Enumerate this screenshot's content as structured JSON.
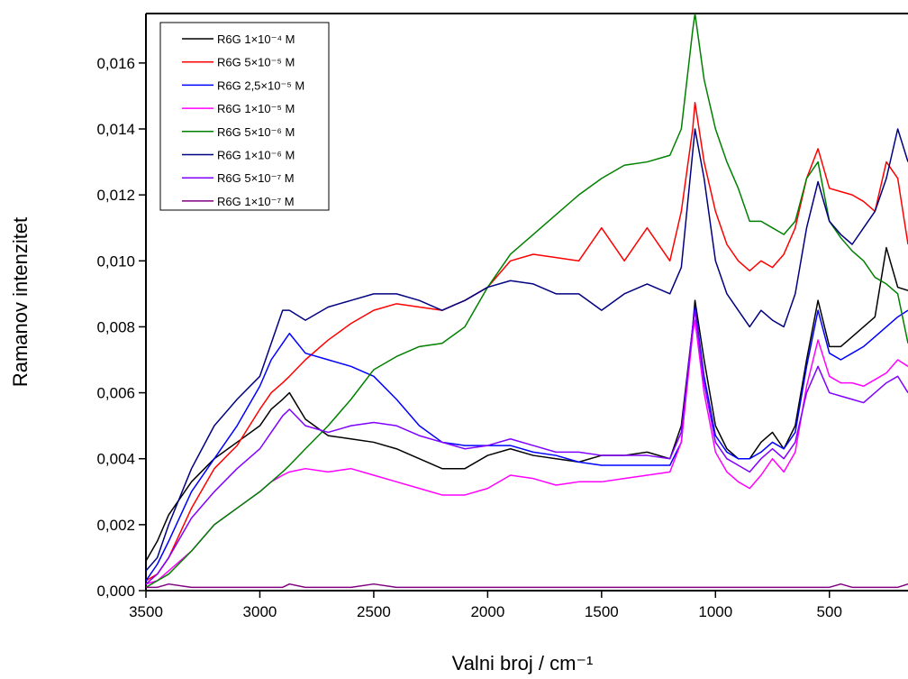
{
  "chart_data": {
    "type": "line",
    "x_label": "Valni broj / cm⁻¹",
    "y_label": "Ramanov intenzitet",
    "x": [
      3500,
      3450,
      3400,
      3300,
      3200,
      3100,
      3000,
      2950,
      2900,
      2870,
      2800,
      2700,
      2600,
      2500,
      2400,
      2300,
      2200,
      2100,
      2000,
      1900,
      1800,
      1700,
      1600,
      1500,
      1400,
      1300,
      1200,
      1150,
      1100,
      1090,
      1050,
      1000,
      950,
      900,
      850,
      800,
      750,
      700,
      650,
      600,
      550,
      500,
      450,
      400,
      350,
      300,
      250,
      200,
      155
    ],
    "xlim": [
      3500,
      155
    ],
    "xticks": [
      3500,
      3000,
      2500,
      2000,
      1500,
      1000,
      500
    ],
    "ylim": [
      0,
      0.0175
    ],
    "yticks": [
      {
        "value": 0,
        "label": "0,000"
      },
      {
        "value": 0.002,
        "label": "0,002"
      },
      {
        "value": 0.004,
        "label": "0,004"
      },
      {
        "value": 0.006,
        "label": "0,006"
      },
      {
        "value": 0.008,
        "label": "0,008"
      },
      {
        "value": 0.01,
        "label": "0,010"
      },
      {
        "value": 0.012,
        "label": "0,012"
      },
      {
        "value": 0.014,
        "label": "0,014"
      },
      {
        "value": 0.016,
        "label": "0,016"
      }
    ],
    "legend": "top-left",
    "series": [
      {
        "name": "R6G 1×10⁻⁴ M",
        "color": "#000000",
        "values": [
          0.0009,
          0.0015,
          0.0023,
          0.0033,
          0.004,
          0.0045,
          0.005,
          0.0055,
          0.0058,
          0.006,
          0.0052,
          0.0047,
          0.0046,
          0.0045,
          0.0043,
          0.004,
          0.0037,
          0.0037,
          0.0041,
          0.0043,
          0.0041,
          0.004,
          0.0039,
          0.0041,
          0.0041,
          0.0042,
          0.004,
          0.005,
          0.008,
          0.0088,
          0.007,
          0.005,
          0.0043,
          0.004,
          0.004,
          0.0045,
          0.0048,
          0.0043,
          0.005,
          0.007,
          0.0088,
          0.0074,
          0.0074,
          0.0077,
          0.008,
          0.0083,
          0.0104,
          0.0092,
          0.0091
        ]
      },
      {
        "name": "R6G 5×10⁻⁵ M",
        "color": "#ff0000",
        "values": [
          0.0003,
          0.0005,
          0.001,
          0.0025,
          0.0037,
          0.0044,
          0.0055,
          0.006,
          0.0063,
          0.0065,
          0.007,
          0.0076,
          0.0081,
          0.0085,
          0.0087,
          0.0086,
          0.0085,
          0.0088,
          0.0092,
          0.01,
          0.0102,
          0.0101,
          0.01,
          0.011,
          0.01,
          0.011,
          0.01,
          0.0115,
          0.014,
          0.0148,
          0.013,
          0.0115,
          0.0105,
          0.01,
          0.0097,
          0.01,
          0.0098,
          0.0102,
          0.011,
          0.0125,
          0.0134,
          0.0122,
          0.0121,
          0.012,
          0.0118,
          0.0115,
          0.013,
          0.0125,
          0.0105
        ]
      },
      {
        "name": "R6G 2,5×10⁻⁵ M",
        "color": "#0000ff",
        "values": [
          0.0003,
          0.0008,
          0.0015,
          0.003,
          0.004,
          0.005,
          0.0062,
          0.007,
          0.0075,
          0.0078,
          0.0072,
          0.007,
          0.0068,
          0.0065,
          0.0058,
          0.005,
          0.0045,
          0.0044,
          0.0044,
          0.0044,
          0.0042,
          0.0041,
          0.0039,
          0.0038,
          0.0038,
          0.0038,
          0.0038,
          0.0045,
          0.008,
          0.0086,
          0.0065,
          0.0047,
          0.0042,
          0.004,
          0.004,
          0.0042,
          0.0045,
          0.0043,
          0.0048,
          0.0068,
          0.0085,
          0.0072,
          0.007,
          0.0072,
          0.0074,
          0.0077,
          0.008,
          0.0083,
          0.0085
        ]
      },
      {
        "name": "R6G 1×10⁻⁵ M",
        "color": "#ff00ff",
        "values": [
          0.0002,
          0.0003,
          0.0006,
          0.0012,
          0.002,
          0.0025,
          0.003,
          0.0033,
          0.0035,
          0.0036,
          0.0037,
          0.0036,
          0.0037,
          0.0035,
          0.0033,
          0.0031,
          0.0029,
          0.0029,
          0.0031,
          0.0035,
          0.0034,
          0.0032,
          0.0033,
          0.0033,
          0.0034,
          0.0035,
          0.0036,
          0.0045,
          0.0078,
          0.0082,
          0.006,
          0.0042,
          0.0036,
          0.0033,
          0.0031,
          0.0035,
          0.004,
          0.0036,
          0.0042,
          0.0062,
          0.0076,
          0.0065,
          0.0063,
          0.0063,
          0.0062,
          0.0064,
          0.0066,
          0.007,
          0.0068
        ]
      },
      {
        "name": "R6G 5×10⁻⁶ M",
        "color": "#008000",
        "values": [
          0.0001,
          0.0003,
          0.0005,
          0.0012,
          0.002,
          0.0025,
          0.003,
          0.0033,
          0.0036,
          0.0038,
          0.0043,
          0.005,
          0.0058,
          0.0067,
          0.0071,
          0.0074,
          0.0075,
          0.008,
          0.0092,
          0.0102,
          0.0108,
          0.0114,
          0.012,
          0.0125,
          0.0129,
          0.013,
          0.0132,
          0.014,
          0.017,
          0.0175,
          0.0155,
          0.014,
          0.013,
          0.0122,
          0.0112,
          0.0112,
          0.011,
          0.0108,
          0.0112,
          0.0125,
          0.013,
          0.0112,
          0.0107,
          0.0103,
          0.01,
          0.0095,
          0.0093,
          0.009,
          0.0075
        ]
      },
      {
        "name": "R6G 1×10⁻⁶ M",
        "color": "#000080",
        "values": [
          0.0006,
          0.001,
          0.002,
          0.0037,
          0.005,
          0.0058,
          0.0065,
          0.0075,
          0.0085,
          0.0085,
          0.0082,
          0.0086,
          0.0088,
          0.009,
          0.009,
          0.0088,
          0.0085,
          0.0088,
          0.0092,
          0.0094,
          0.0093,
          0.009,
          0.009,
          0.0085,
          0.009,
          0.0093,
          0.009,
          0.0098,
          0.0133,
          0.014,
          0.0125,
          0.01,
          0.009,
          0.0085,
          0.008,
          0.0085,
          0.0082,
          0.008,
          0.009,
          0.011,
          0.0124,
          0.0112,
          0.0108,
          0.0105,
          0.011,
          0.0115,
          0.0125,
          0.014,
          0.013
        ]
      },
      {
        "name": "R6G 5×10⁻⁷ M",
        "color": "#8000ff",
        "values": [
          0.0002,
          0.0005,
          0.001,
          0.0022,
          0.003,
          0.0037,
          0.0043,
          0.0048,
          0.0053,
          0.0055,
          0.005,
          0.0048,
          0.005,
          0.0051,
          0.005,
          0.0047,
          0.0045,
          0.0043,
          0.0044,
          0.0046,
          0.0044,
          0.0042,
          0.0042,
          0.0041,
          0.0041,
          0.0041,
          0.004,
          0.0048,
          0.008,
          0.0085,
          0.0063,
          0.0045,
          0.004,
          0.0038,
          0.0036,
          0.004,
          0.0043,
          0.004,
          0.0045,
          0.006,
          0.0068,
          0.006,
          0.0059,
          0.0058,
          0.0057,
          0.006,
          0.0063,
          0.0065,
          0.006
        ]
      },
      {
        "name": "R6G 1×10⁻⁷ M",
        "color": "#800080",
        "values": [
          0.0001,
          0.0001,
          0.0002,
          0.0001,
          0.0001,
          0.0001,
          0.0001,
          0.0001,
          0.0001,
          0.0002,
          0.0001,
          0.0001,
          0.0001,
          0.0002,
          0.0001,
          0.0001,
          0.0001,
          0.0001,
          0.0001,
          0.0001,
          0.0001,
          0.0001,
          0.0001,
          0.0001,
          0.0001,
          0.0001,
          0.0001,
          0.0001,
          0.0001,
          0.0001,
          0.0001,
          0.0001,
          0.0001,
          0.0001,
          0.0001,
          0.0001,
          0.0001,
          0.0001,
          0.0001,
          0.0001,
          0.0001,
          0.0001,
          0.0002,
          0.0001,
          0.0001,
          0.0001,
          0.0001,
          0.0001,
          0.0002
        ]
      }
    ]
  }
}
